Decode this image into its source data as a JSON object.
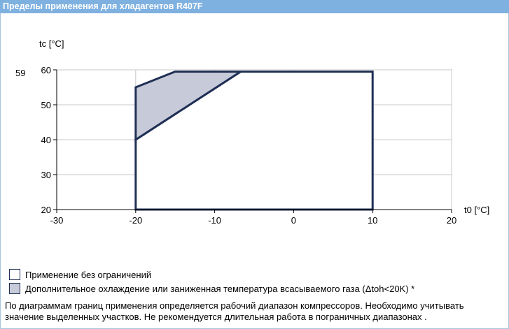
{
  "header": {
    "title": "Пределы применения для хладагентов R407F"
  },
  "chart_data": {
    "type": "area",
    "ylabel": "tc [°C]",
    "xlabel": "t0 [°C]",
    "xlim": [
      -30,
      20
    ],
    "ylim": [
      20,
      60
    ],
    "x_ticks": [
      "-30",
      "-20",
      "-10",
      "0",
      "10",
      "20"
    ],
    "y_ticks": [
      "20",
      "30",
      "40",
      "50",
      "60"
    ],
    "y_extra_label": "59",
    "grid": true,
    "regions": [
      {
        "name": "Применение без ограничений",
        "points": [
          [
            -20,
            20
          ],
          [
            10,
            20
          ],
          [
            10,
            59.5
          ],
          [
            -6.7,
            59.5
          ],
          [
            -20,
            40
          ]
        ],
        "fill": "#ffffff",
        "stroke": "#1f2f55"
      },
      {
        "name": "Дополнительное охлаждение или заниженная температура всасываемого газа (Δtoh<20K) *",
        "points": [
          [
            -20,
            40
          ],
          [
            -6.7,
            59.5
          ],
          [
            -15,
            59.5
          ],
          [
            -20,
            55
          ]
        ],
        "fill": "#c7cad8",
        "stroke": "#1f2f55"
      }
    ]
  },
  "legend": [
    {
      "label": "Применение без ограничений",
      "color": "#ffffff"
    },
    {
      "label": "Дополнительное охлаждение или заниженная температура всасываемого газа (Δtoh<20K) *",
      "color": "#c7cad8"
    }
  ],
  "note": "По диаграммам границ применения определяется рабочий диапазон компрессоров. Необходимо учитывать значение выделенных участков. Не рекомендуется длительная работа в пограничных диапазонах ."
}
